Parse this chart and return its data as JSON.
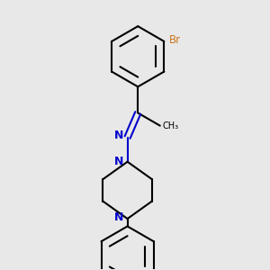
{
  "background_color": "#e8e8e8",
  "bond_color": "#000000",
  "nitrogen_color": "#0000cc",
  "bromine_color": "#cc7722",
  "line_width": 1.5,
  "figsize": [
    3.0,
    3.0
  ],
  "dpi": 100,
  "xlim": [
    -1.5,
    1.5
  ],
  "ylim": [
    -2.3,
    2.3
  ]
}
